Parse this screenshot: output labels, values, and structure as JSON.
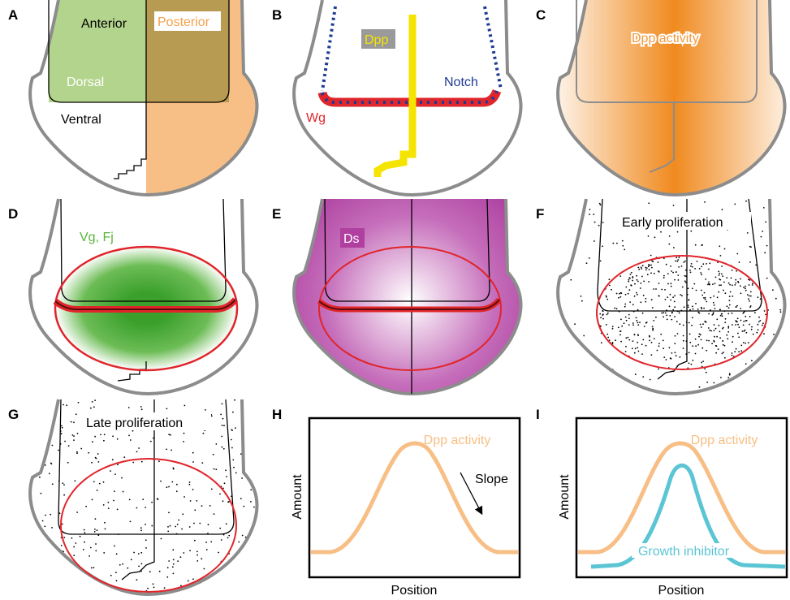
{
  "panels": [
    {
      "letter": "A",
      "labels": [
        "Anterior",
        "Posterior",
        "Dorsal",
        "Ventral"
      ]
    },
    {
      "letter": "B",
      "labels": [
        "Dpp",
        "Notch",
        "Wg"
      ]
    },
    {
      "letter": "C",
      "labels": [
        "Dpp activity"
      ]
    },
    {
      "letter": "D",
      "labels": [
        "Vg, Fj"
      ]
    },
    {
      "letter": "E",
      "labels": [
        "Ds"
      ]
    },
    {
      "letter": "F",
      "title": "Early proliferation"
    },
    {
      "letter": "G",
      "title": "Late proliferation"
    },
    {
      "letter": "H",
      "y_label": "Amount",
      "x_label": "Position",
      "labels": [
        "Dpp activity",
        "Slope"
      ]
    },
    {
      "letter": "I",
      "y_label": "Amount",
      "x_label": "Position",
      "labels": [
        "Dpp activity",
        "Growth inhibitor"
      ]
    }
  ]
}
